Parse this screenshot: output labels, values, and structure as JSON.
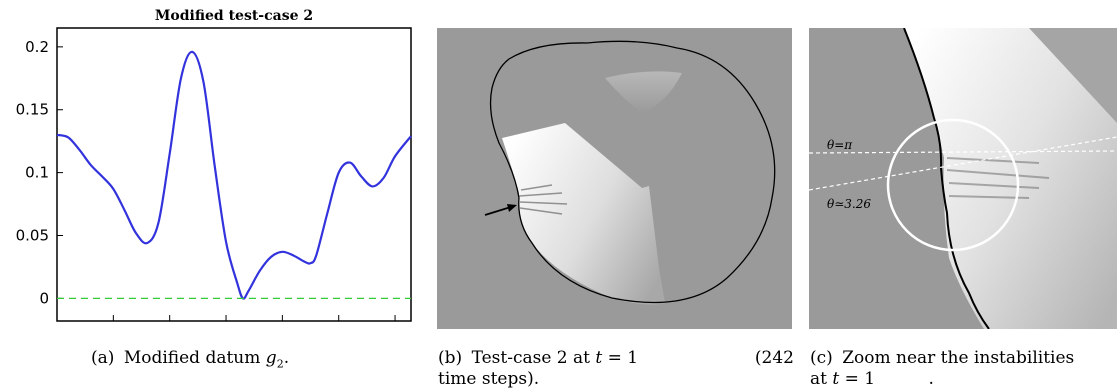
{
  "chart_data": {
    "type": "line",
    "title": "Modified test-case 2",
    "xlim": [
      0,
      6.283
    ],
    "ylim": [
      -0.018,
      0.215
    ],
    "xticks": [
      "0",
      "1",
      "2",
      "3",
      "4",
      "5",
      "6"
    ],
    "yticks": [
      "0",
      "0.05",
      "0.1",
      "0.15",
      "0.2"
    ],
    "ytick_values": [
      0,
      0.05,
      0.1,
      0.15,
      0.2
    ],
    "xtick_values": [
      0,
      1,
      2,
      3,
      4,
      5,
      6
    ],
    "series": [
      {
        "color": "#3333dd",
        "x": [
          0,
          0.2,
          0.4,
          0.6,
          0.8,
          1.0,
          1.2,
          1.4,
          1.6,
          1.8,
          2.0,
          2.2,
          2.4,
          2.6,
          2.8,
          3.0,
          3.2,
          3.3,
          3.4,
          3.6,
          3.8,
          4.0,
          4.2,
          4.4,
          4.5,
          4.6,
          4.8,
          5.0,
          5.2,
          5.4,
          5.6,
          5.8,
          6.0,
          6.283
        ],
        "y": [
          0.13,
          0.128,
          0.118,
          0.106,
          0.097,
          0.087,
          0.07,
          0.052,
          0.044,
          0.06,
          0.115,
          0.175,
          0.196,
          0.172,
          0.105,
          0.045,
          0.012,
          0.0,
          0.006,
          0.022,
          0.033,
          0.037,
          0.034,
          0.029,
          0.028,
          0.034,
          0.068,
          0.1,
          0.108,
          0.097,
          0.089,
          0.096,
          0.113,
          0.129
        ]
      },
      {
        "color": "#33cc33",
        "dashed": true,
        "x": [
          0,
          6.283
        ],
        "y": [
          0,
          0
        ]
      }
    ]
  },
  "captions": {
    "a_label": "(a)",
    "a_text": "Modified datum",
    "a_var": "g",
    "a_sub": "2",
    "a_end": ".",
    "b_label": "(b)",
    "b_line1": "Test-case 2 at",
    "b_var": "t",
    "b_eq": "= 1",
    "b_num": "(242",
    "b_line2": "time steps).",
    "c_label": "(c)",
    "c_line1": "Zoom near the instabilities",
    "c_line2a": "at",
    "c_var": "t",
    "c_eq": "= 1",
    "c_end": "."
  },
  "zoom_labels": {
    "theta_pi": "θ=π",
    "theta_326": "θ≃3.26"
  },
  "colors": {
    "panel_bg": "#9a9a9a",
    "curve": "#3333dd",
    "zero_line": "#33cc33"
  }
}
